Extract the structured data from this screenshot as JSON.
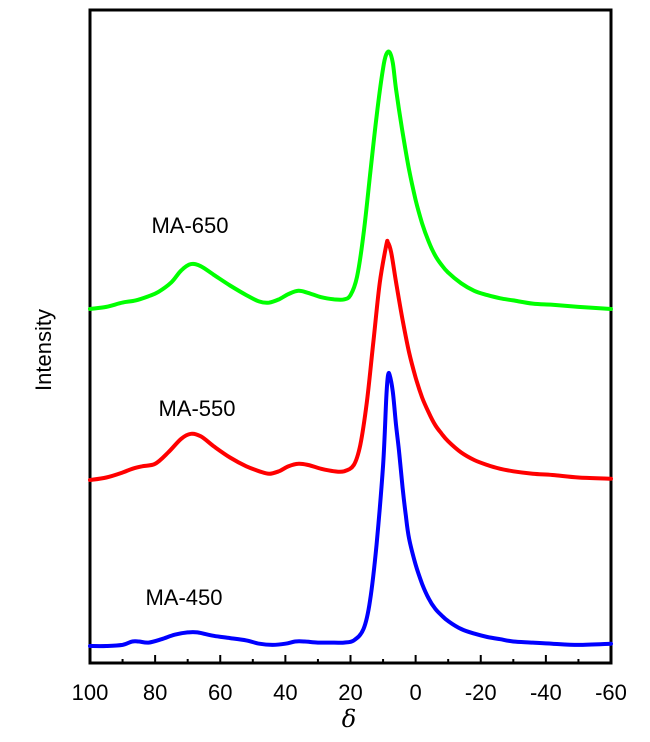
{
  "chart_data": {
    "type": "line",
    "title": "",
    "xlabel": "δ",
    "ylabel": "Intensity",
    "xlim": [
      100,
      -60
    ],
    "x_reversed": true,
    "x_ticks": [
      100,
      80,
      60,
      40,
      20,
      0,
      -20,
      -40,
      -60
    ],
    "y_ticks_shown": false,
    "grid": false,
    "legend": "none",
    "series": [
      {
        "name": "MA-450",
        "color": "#0000ff",
        "points": [
          [
            100,
            0.0
          ],
          [
            95,
            0.0
          ],
          [
            90,
            0.01
          ],
          [
            87,
            0.04
          ],
          [
            85,
            0.04
          ],
          [
            82,
            0.03
          ],
          [
            78,
            0.06
          ],
          [
            74,
            0.1
          ],
          [
            70,
            0.12
          ],
          [
            67,
            0.12
          ],
          [
            62,
            0.09
          ],
          [
            57,
            0.07
          ],
          [
            52,
            0.05
          ],
          [
            48,
            0.02
          ],
          [
            44,
            0.01
          ],
          [
            40,
            0.02
          ],
          [
            37,
            0.04
          ],
          [
            34,
            0.04
          ],
          [
            30,
            0.03
          ],
          [
            25,
            0.03
          ],
          [
            22,
            0.03
          ],
          [
            19,
            0.05
          ],
          [
            16,
            0.15
          ],
          [
            14,
            0.4
          ],
          [
            12,
            0.9
          ],
          [
            10,
            1.6
          ],
          [
            9,
            2.2
          ],
          [
            8.5,
            2.39
          ],
          [
            8,
            2.4
          ],
          [
            7,
            2.25
          ],
          [
            6,
            1.95
          ],
          [
            5,
            1.7
          ],
          [
            4,
            1.4
          ],
          [
            3,
            1.15
          ],
          [
            2,
            0.95
          ],
          [
            0,
            0.72
          ],
          [
            -2,
            0.55
          ],
          [
            -4,
            0.42
          ],
          [
            -6,
            0.33
          ],
          [
            -8,
            0.27
          ],
          [
            -10,
            0.22
          ],
          [
            -14,
            0.15
          ],
          [
            -18,
            0.11
          ],
          [
            -22,
            0.08
          ],
          [
            -26,
            0.06
          ],
          [
            -30,
            0.04
          ],
          [
            -36,
            0.03
          ],
          [
            -42,
            0.02
          ],
          [
            -50,
            0.01
          ],
          [
            -60,
            0.02
          ]
        ]
      },
      {
        "name": "MA-550",
        "color": "#ff0000",
        "points": [
          [
            100,
            0.0
          ],
          [
            95,
            0.02
          ],
          [
            90,
            0.06
          ],
          [
            87,
            0.09
          ],
          [
            84,
            0.11
          ],
          [
            80,
            0.13
          ],
          [
            76,
            0.22
          ],
          [
            72,
            0.33
          ],
          [
            69,
            0.37
          ],
          [
            66,
            0.35
          ],
          [
            62,
            0.27
          ],
          [
            57,
            0.18
          ],
          [
            52,
            0.11
          ],
          [
            48,
            0.07
          ],
          [
            45,
            0.05
          ],
          [
            42,
            0.07
          ],
          [
            39,
            0.11
          ],
          [
            36,
            0.13
          ],
          [
            33,
            0.12
          ],
          [
            29,
            0.09
          ],
          [
            25,
            0.07
          ],
          [
            22,
            0.07
          ],
          [
            19,
            0.12
          ],
          [
            17,
            0.28
          ],
          [
            15,
            0.62
          ],
          [
            13,
            1.1
          ],
          [
            11,
            1.58
          ],
          [
            9,
            1.88
          ],
          [
            8.5,
            1.9
          ],
          [
            7.5,
            1.82
          ],
          [
            6,
            1.58
          ],
          [
            4,
            1.28
          ],
          [
            2,
            1.02
          ],
          [
            0,
            0.82
          ],
          [
            -2,
            0.66
          ],
          [
            -4,
            0.54
          ],
          [
            -6,
            0.44
          ],
          [
            -8,
            0.37
          ],
          [
            -10,
            0.31
          ],
          [
            -14,
            0.22
          ],
          [
            -18,
            0.16
          ],
          [
            -22,
            0.12
          ],
          [
            -26,
            0.09
          ],
          [
            -30,
            0.07
          ],
          [
            -36,
            0.05
          ],
          [
            -42,
            0.04
          ],
          [
            -50,
            0.02
          ],
          [
            -60,
            0.01
          ]
        ]
      },
      {
        "name": "MA-650",
        "color": "#00ff00",
        "points": [
          [
            100,
            0.0
          ],
          [
            95,
            0.02
          ],
          [
            90,
            0.06
          ],
          [
            86,
            0.08
          ],
          [
            82,
            0.12
          ],
          [
            79,
            0.16
          ],
          [
            75,
            0.25
          ],
          [
            72,
            0.36
          ],
          [
            69,
            0.42
          ],
          [
            66,
            0.4
          ],
          [
            62,
            0.32
          ],
          [
            57,
            0.22
          ],
          [
            52,
            0.13
          ],
          [
            48,
            0.07
          ],
          [
            45,
            0.06
          ],
          [
            42,
            0.09
          ],
          [
            39,
            0.14
          ],
          [
            36,
            0.17
          ],
          [
            33,
            0.15
          ],
          [
            29,
            0.11
          ],
          [
            25,
            0.09
          ],
          [
            22,
            0.09
          ],
          [
            20,
            0.13
          ],
          [
            18,
            0.3
          ],
          [
            16,
            0.7
          ],
          [
            14,
            1.25
          ],
          [
            12,
            1.8
          ],
          [
            10,
            2.25
          ],
          [
            9,
            2.38
          ],
          [
            8,
            2.4
          ],
          [
            7,
            2.3
          ],
          [
            6,
            2.05
          ],
          [
            4,
            1.65
          ],
          [
            2,
            1.3
          ],
          [
            0,
            1.02
          ],
          [
            -2,
            0.8
          ],
          [
            -4,
            0.63
          ],
          [
            -6,
            0.5
          ],
          [
            -8,
            0.41
          ],
          [
            -10,
            0.34
          ],
          [
            -14,
            0.24
          ],
          [
            -18,
            0.17
          ],
          [
            -22,
            0.13
          ],
          [
            -26,
            0.1
          ],
          [
            -30,
            0.08
          ],
          [
            -36,
            0.05
          ],
          [
            -42,
            0.04
          ],
          [
            -50,
            0.02
          ],
          [
            -60,
            0.0
          ]
        ]
      }
    ]
  }
}
